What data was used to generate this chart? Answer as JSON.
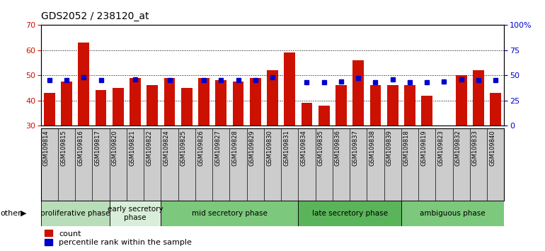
{
  "title": "GDS2052 / 238120_at",
  "samples": [
    "GSM109814",
    "GSM109815",
    "GSM109816",
    "GSM109817",
    "GSM109820",
    "GSM109821",
    "GSM109822",
    "GSM109824",
    "GSM109825",
    "GSM109826",
    "GSM109827",
    "GSM109828",
    "GSM109829",
    "GSM109830",
    "GSM109831",
    "GSM109834",
    "GSM109835",
    "GSM109836",
    "GSM109837",
    "GSM109838",
    "GSM109839",
    "GSM109818",
    "GSM109819",
    "GSM109823",
    "GSM109832",
    "GSM109833",
    "GSM109840"
  ],
  "count": [
    43,
    47.5,
    63,
    44,
    45,
    49,
    46,
    49,
    45,
    49,
    48,
    47.5,
    49,
    52,
    59,
    39,
    38,
    46,
    56,
    46,
    46,
    46,
    42,
    30,
    50,
    52,
    43
  ],
  "percentile": [
    45,
    45,
    48,
    45,
    null,
    46,
    null,
    45,
    null,
    45,
    45,
    45,
    45,
    48,
    null,
    43,
    43,
    44,
    47,
    43,
    46,
    43,
    43,
    44,
    46,
    45,
    45
  ],
  "phases": [
    {
      "label": "proliferative phase",
      "color": "#b8ddb8",
      "start": 0,
      "end": 4
    },
    {
      "label": "early secretory\nphase",
      "color": "#d8eed8",
      "start": 4,
      "end": 7
    },
    {
      "label": "mid secretory phase",
      "color": "#7cc87c",
      "start": 7,
      "end": 15
    },
    {
      "label": "late secretory phase",
      "color": "#5ab45a",
      "start": 15,
      "end": 21
    },
    {
      "label": "ambiguous phase",
      "color": "#7cc87c",
      "start": 21,
      "end": 27
    }
  ],
  "ylim_left": [
    30,
    70
  ],
  "ylim_right": [
    0,
    100
  ],
  "yticks_left": [
    30,
    40,
    50,
    60,
    70
  ],
  "yticks_right": [
    0,
    25,
    50,
    75,
    100
  ],
  "bar_color": "#cc1100",
  "dot_color": "#0000cc",
  "title_fontsize": 10,
  "tick_fontsize": 8,
  "sample_fontsize": 6,
  "phase_fontsize": 7.5,
  "legend_fontsize": 8
}
